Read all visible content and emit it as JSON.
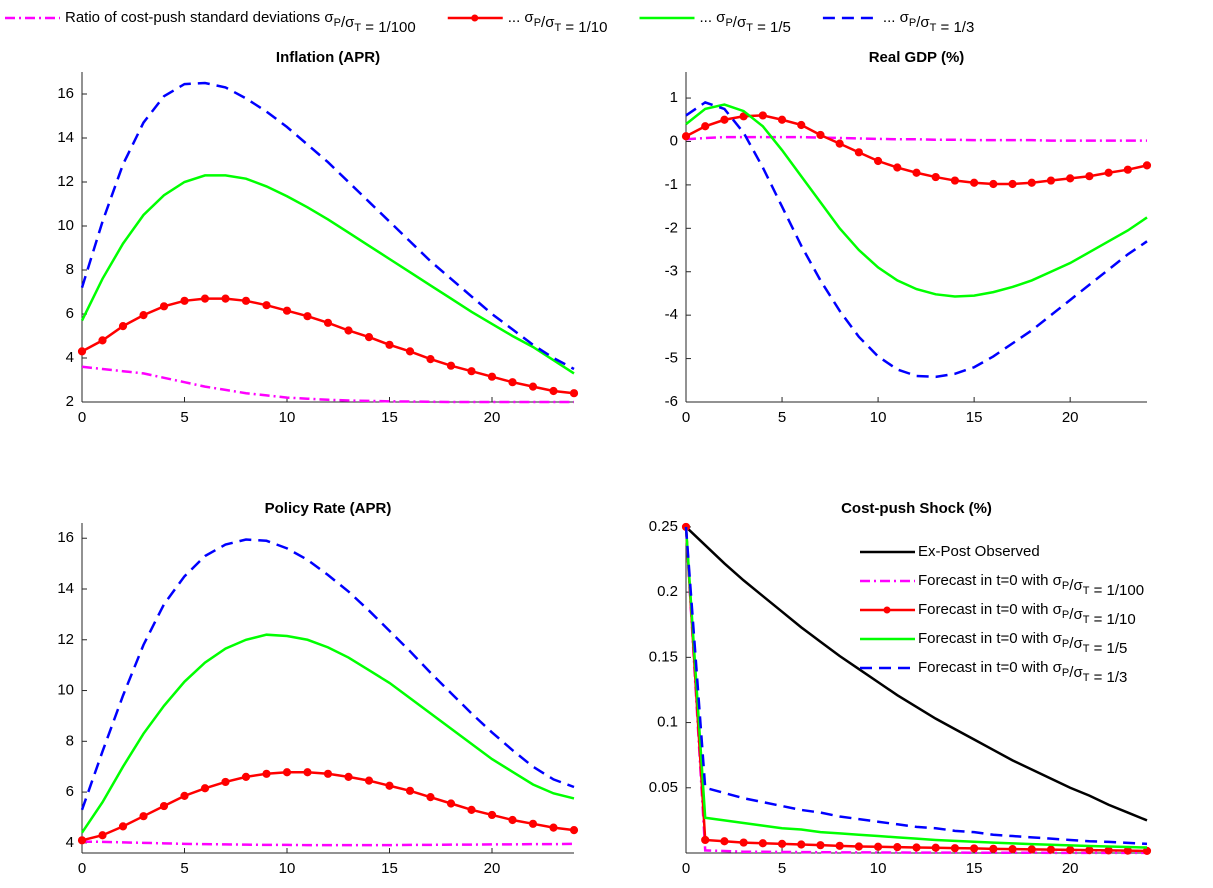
{
  "chart_data": [
    {
      "type": "line",
      "title": "Inflation (APR)",
      "legend": "top",
      "x": [
        0,
        1,
        2,
        3,
        4,
        5,
        6,
        7,
        8,
        9,
        10,
        11,
        12,
        13,
        14,
        15,
        16,
        17,
        18,
        19,
        20,
        21,
        22,
        23,
        24
      ],
      "xlim": [
        0,
        24
      ],
      "xticks": [
        0,
        5,
        10,
        15,
        20
      ],
      "ylim": [
        2,
        17
      ],
      "yticks": [
        2,
        4,
        6,
        8,
        10,
        12,
        14,
        16
      ],
      "series": [
        {
          "name": "Ratio of cost-push standard deviations σP/σT = 1/100",
          "color": "#ff00ff",
          "linestyle": "dashdot",
          "values": [
            3.6,
            3.5,
            3.4,
            3.3,
            3.1,
            2.9,
            2.7,
            2.55,
            2.4,
            2.3,
            2.2,
            2.15,
            2.1,
            2.07,
            2.05,
            2.03,
            2.02,
            2.01,
            2.0,
            2.0,
            2.0,
            2.0,
            2.0,
            2.0,
            2.0
          ]
        },
        {
          "name": "... σP/σT = 1/10",
          "color": "#ff0000",
          "linestyle": "solid",
          "marker": "o",
          "values": [
            4.3,
            4.8,
            5.45,
            5.95,
            6.35,
            6.6,
            6.7,
            6.7,
            6.6,
            6.4,
            6.15,
            5.9,
            5.6,
            5.25,
            4.95,
            4.6,
            4.3,
            3.95,
            3.65,
            3.4,
            3.15,
            2.9,
            2.7,
            2.5,
            2.4
          ]
        },
        {
          "name": "... σP/σT = 1/5",
          "color": "#00ff00",
          "linestyle": "solid",
          "values": [
            5.7,
            7.6,
            9.2,
            10.5,
            11.4,
            12.0,
            12.3,
            12.3,
            12.15,
            11.8,
            11.35,
            10.85,
            10.3,
            9.7,
            9.1,
            8.5,
            7.9,
            7.3,
            6.7,
            6.1,
            5.55,
            5.0,
            4.5,
            3.9,
            3.3
          ]
        },
        {
          "name": "... σP/σT = 1/3",
          "color": "#0000ff",
          "linestyle": "dashed",
          "values": [
            7.2,
            10.2,
            12.8,
            14.7,
            15.9,
            16.45,
            16.5,
            16.3,
            15.8,
            15.2,
            14.5,
            13.7,
            12.9,
            12.0,
            11.1,
            10.2,
            9.3,
            8.4,
            7.6,
            6.8,
            6.0,
            5.3,
            4.6,
            4.0,
            3.5
          ]
        }
      ]
    },
    {
      "type": "line",
      "title": "Real GDP (%)",
      "x": [
        0,
        1,
        2,
        3,
        4,
        5,
        6,
        7,
        8,
        9,
        10,
        11,
        12,
        13,
        14,
        15,
        16,
        17,
        18,
        19,
        20,
        21,
        22,
        23,
        24
      ],
      "xlim": [
        0,
        24
      ],
      "xticks": [
        0,
        5,
        10,
        15,
        20
      ],
      "ylim": [
        -6,
        1.6
      ],
      "yticks": [
        -6,
        -5,
        -4,
        -3,
        -2,
        -1,
        0,
        1
      ],
      "series": [
        {
          "color": "#ff00ff",
          "linestyle": "dashdot",
          "values": [
            0.05,
            0.08,
            0.1,
            0.1,
            0.1,
            0.1,
            0.1,
            0.09,
            0.08,
            0.07,
            0.06,
            0.05,
            0.05,
            0.04,
            0.04,
            0.03,
            0.03,
            0.03,
            0.03,
            0.02,
            0.02,
            0.02,
            0.02,
            0.02,
            0.02
          ]
        },
        {
          "color": "#ff0000",
          "linestyle": "solid",
          "marker": "o",
          "values": [
            0.12,
            0.35,
            0.5,
            0.58,
            0.6,
            0.5,
            0.38,
            0.15,
            -0.05,
            -0.25,
            -0.45,
            -0.6,
            -0.72,
            -0.82,
            -0.9,
            -0.95,
            -0.98,
            -0.98,
            -0.95,
            -0.9,
            -0.85,
            -0.8,
            -0.72,
            -0.65,
            -0.55
          ]
        },
        {
          "color": "#00ff00",
          "linestyle": "solid",
          "values": [
            0.4,
            0.75,
            0.85,
            0.7,
            0.35,
            -0.2,
            -0.8,
            -1.4,
            -2.0,
            -2.5,
            -2.9,
            -3.2,
            -3.4,
            -3.52,
            -3.57,
            -3.55,
            -3.47,
            -3.35,
            -3.2,
            -3.0,
            -2.8,
            -2.55,
            -2.3,
            -2.05,
            -1.75
          ]
        },
        {
          "color": "#0000ff",
          "linestyle": "dashed",
          "values": [
            0.6,
            0.9,
            0.75,
            0.2,
            -0.6,
            -1.5,
            -2.4,
            -3.2,
            -3.9,
            -4.5,
            -4.95,
            -5.25,
            -5.4,
            -5.42,
            -5.35,
            -5.2,
            -4.95,
            -4.65,
            -4.35,
            -4.0,
            -3.65,
            -3.3,
            -2.95,
            -2.6,
            -2.3
          ]
        }
      ]
    },
    {
      "type": "line",
      "title": "Policy Rate (APR)",
      "x": [
        0,
        1,
        2,
        3,
        4,
        5,
        6,
        7,
        8,
        9,
        10,
        11,
        12,
        13,
        14,
        15,
        16,
        17,
        18,
        19,
        20,
        21,
        22,
        23,
        24
      ],
      "xlim": [
        0,
        24
      ],
      "xticks": [
        0,
        5,
        10,
        15,
        20
      ],
      "ylim": [
        3.6,
        16.6
      ],
      "yticks": [
        4,
        6,
        8,
        10,
        12,
        14,
        16
      ],
      "series": [
        {
          "color": "#ff00ff",
          "linestyle": "dashdot",
          "values": [
            4.05,
            4.04,
            4.02,
            4.0,
            3.98,
            3.96,
            3.95,
            3.94,
            3.93,
            3.92,
            3.92,
            3.91,
            3.91,
            3.91,
            3.91,
            3.91,
            3.92,
            3.92,
            3.93,
            3.93,
            3.94,
            3.94,
            3.95,
            3.95,
            3.96
          ]
        },
        {
          "color": "#ff0000",
          "linestyle": "solid",
          "marker": "o",
          "values": [
            4.1,
            4.3,
            4.65,
            5.05,
            5.45,
            5.85,
            6.15,
            6.4,
            6.6,
            6.72,
            6.78,
            6.78,
            6.72,
            6.6,
            6.45,
            6.25,
            6.05,
            5.8,
            5.55,
            5.3,
            5.1,
            4.9,
            4.75,
            4.6,
            4.5
          ]
        },
        {
          "color": "#00ff00",
          "linestyle": "solid",
          "values": [
            4.4,
            5.6,
            7.0,
            8.3,
            9.4,
            10.35,
            11.1,
            11.65,
            12.0,
            12.2,
            12.15,
            12.0,
            11.7,
            11.3,
            10.8,
            10.3,
            9.7,
            9.1,
            8.5,
            7.9,
            7.3,
            6.8,
            6.3,
            5.95,
            5.75
          ]
        },
        {
          "color": "#0000ff",
          "linestyle": "dashed",
          "values": [
            5.3,
            7.6,
            9.8,
            11.8,
            13.4,
            14.5,
            15.3,
            15.75,
            15.95,
            15.9,
            15.6,
            15.15,
            14.55,
            13.9,
            13.15,
            12.35,
            11.55,
            10.7,
            9.9,
            9.1,
            8.35,
            7.65,
            7.0,
            6.5,
            6.2
          ]
        }
      ]
    },
    {
      "type": "line",
      "title": "Cost-push Shock (%)",
      "legend": "upper right",
      "x": [
        0,
        1,
        2,
        3,
        4,
        5,
        6,
        7,
        8,
        9,
        10,
        11,
        12,
        13,
        14,
        15,
        16,
        17,
        18,
        19,
        20,
        21,
        22,
        23,
        24
      ],
      "xlim": [
        0,
        24
      ],
      "xticks": [
        0,
        5,
        10,
        15,
        20
      ],
      "ylim": [
        0,
        0.253
      ],
      "yticks": [
        0.05,
        0.1,
        0.15,
        0.2,
        0.25
      ],
      "series": [
        {
          "name": "Ex-Post Observed",
          "color": "#000000",
          "linestyle": "solid",
          "values": [
            0.25,
            0.236,
            0.222,
            0.209,
            0.197,
            0.185,
            0.173,
            0.162,
            0.151,
            0.141,
            0.131,
            0.121,
            0.112,
            0.103,
            0.095,
            0.087,
            0.079,
            0.071,
            0.064,
            0.057,
            0.05,
            0.044,
            0.037,
            0.031,
            0.025
          ]
        },
        {
          "name": "Forecast in t=0 with  σP/σT = 1/100",
          "color": "#ff00ff",
          "linestyle": "dashdot",
          "values": [
            0.25,
            0.002,
            0.0015,
            0.001,
            0.001,
            0.0008,
            0.0007,
            0.0006,
            0.0005,
            0.0005,
            0.0004,
            0.0004,
            0.0003,
            0.0003,
            0.0003,
            0.0002,
            0.0002,
            0.0002,
            0.0002,
            0.0001,
            0.0001,
            0.0001,
            0.0001,
            0.0001,
            0.0001
          ]
        },
        {
          "name": "Forecast in t=0 with  σP/σT = 1/10",
          "color": "#ff0000",
          "linestyle": "solid",
          "marker": "o",
          "values": [
            0.25,
            0.01,
            0.009,
            0.008,
            0.0075,
            0.007,
            0.0065,
            0.006,
            0.0055,
            0.005,
            0.0048,
            0.0045,
            0.0042,
            0.004,
            0.0037,
            0.0035,
            0.0032,
            0.003,
            0.0028,
            0.0026,
            0.0024,
            0.0022,
            0.002,
            0.0018,
            0.0016
          ]
        },
        {
          "name": "Forecast in t=0 with  σP/σT = 1/5",
          "color": "#00ff00",
          "linestyle": "solid",
          "values": [
            0.25,
            0.027,
            0.025,
            0.023,
            0.021,
            0.019,
            0.018,
            0.016,
            0.015,
            0.014,
            0.013,
            0.012,
            0.011,
            0.01,
            0.0093,
            0.0086,
            0.008,
            0.0074,
            0.0068,
            0.0063,
            0.0058,
            0.0054,
            0.005,
            0.0046,
            0.0042
          ]
        },
        {
          "name": "Forecast in t=0 with  σP/σT = 1/3",
          "color": "#0000ff",
          "linestyle": "dashed",
          "values": [
            0.25,
            0.05,
            0.046,
            0.042,
            0.039,
            0.036,
            0.033,
            0.031,
            0.028,
            0.026,
            0.024,
            0.022,
            0.02,
            0.019,
            0.017,
            0.016,
            0.014,
            0.013,
            0.012,
            0.011,
            0.01,
            0.009,
            0.0085,
            0.0078,
            0.007
          ]
        }
      ]
    }
  ]
}
